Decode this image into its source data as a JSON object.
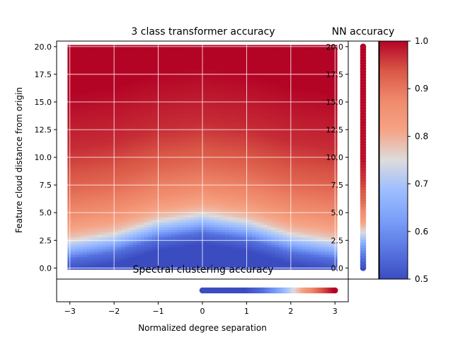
{
  "chart_data": [
    {
      "type": "heatmap",
      "title": "3 class transformer accuracy",
      "xlabel": "",
      "ylabel": "Feature cloud distance from origin",
      "xlim": [
        -3.3,
        3.3
      ],
      "ylim": [
        -1.0,
        20.5
      ],
      "x_range": [
        -3,
        3
      ],
      "y_range": [
        0,
        20
      ],
      "grid": true,
      "colormap": "coolwarm",
      "yticks": [
        0.0,
        2.5,
        5.0,
        7.5,
        10.0,
        12.5,
        15.0,
        17.5,
        20.0
      ],
      "yticklabels": [
        "0.0",
        "2.5",
        "5.0",
        "7.5",
        "10.0",
        "12.5",
        "15.0",
        "17.5",
        "20.0"
      ],
      "xticks": [
        -3,
        -2,
        -1,
        0,
        1,
        2,
        3
      ],
      "xticklabels": [
        "−3",
        "−2",
        "−1",
        "0",
        "1",
        "2",
        "3"
      ],
      "transition": {
        "description_of_value": "accuracy approx 0.5 below boundary, rising to ~1.0 far above it",
        "boundary_y_at_x": {
          "x": [
            -3,
            -2,
            -1,
            0,
            1,
            2,
            3
          ],
          "y": [
            0.8,
            1.4,
            2.6,
            3.2,
            2.6,
            1.4,
            0.8
          ]
        },
        "value_at_y_above_boundary": {
          "dy": [
            0,
            1,
            2,
            4,
            7,
            10,
            15
          ],
          "value": [
            0.55,
            0.68,
            0.78,
            0.87,
            0.93,
            0.97,
            1.0
          ]
        }
      }
    },
    {
      "type": "scatter",
      "title": "NN accuracy",
      "ylim": [
        -1.0,
        20.5
      ],
      "yticks": [
        0.0,
        2.5,
        5.0,
        7.5,
        10.0,
        12.5,
        15.0,
        17.5,
        20.0
      ],
      "yticklabels": [
        "0.0",
        "2.5",
        "5.0",
        "7.5",
        "10.0",
        "12.5",
        "15.0",
        "17.5",
        "20.0"
      ],
      "y_range": [
        0,
        20
      ],
      "value_at_y": {
        "y": [
          0,
          1,
          2,
          3,
          4,
          5,
          6,
          8,
          10,
          20
        ],
        "value": [
          0.5,
          0.55,
          0.62,
          0.72,
          0.8,
          0.86,
          0.91,
          0.96,
          0.99,
          1.0
        ]
      }
    },
    {
      "type": "scatter",
      "title": "Spectral clustering accuracy",
      "xlabel": "Normalized degree separation",
      "xlim": [
        -3.3,
        3.3
      ],
      "x_range": [
        0,
        3
      ],
      "value_at_x": {
        "x": [
          0,
          1,
          1.4,
          1.8,
          2.1,
          2.4,
          2.7,
          3.0
        ],
        "value": [
          0.5,
          0.5,
          0.55,
          0.65,
          0.75,
          0.85,
          0.93,
          1.0
        ]
      }
    },
    {
      "type": "colorbar",
      "colormap": "coolwarm",
      "range": [
        0.5,
        1.0
      ],
      "ticks": [
        0.5,
        0.6,
        0.7,
        0.8,
        0.9,
        1.0
      ],
      "ticklabels": [
        "0.5",
        "0.6",
        "0.7",
        "0.8",
        "0.9",
        "1.0"
      ]
    }
  ]
}
